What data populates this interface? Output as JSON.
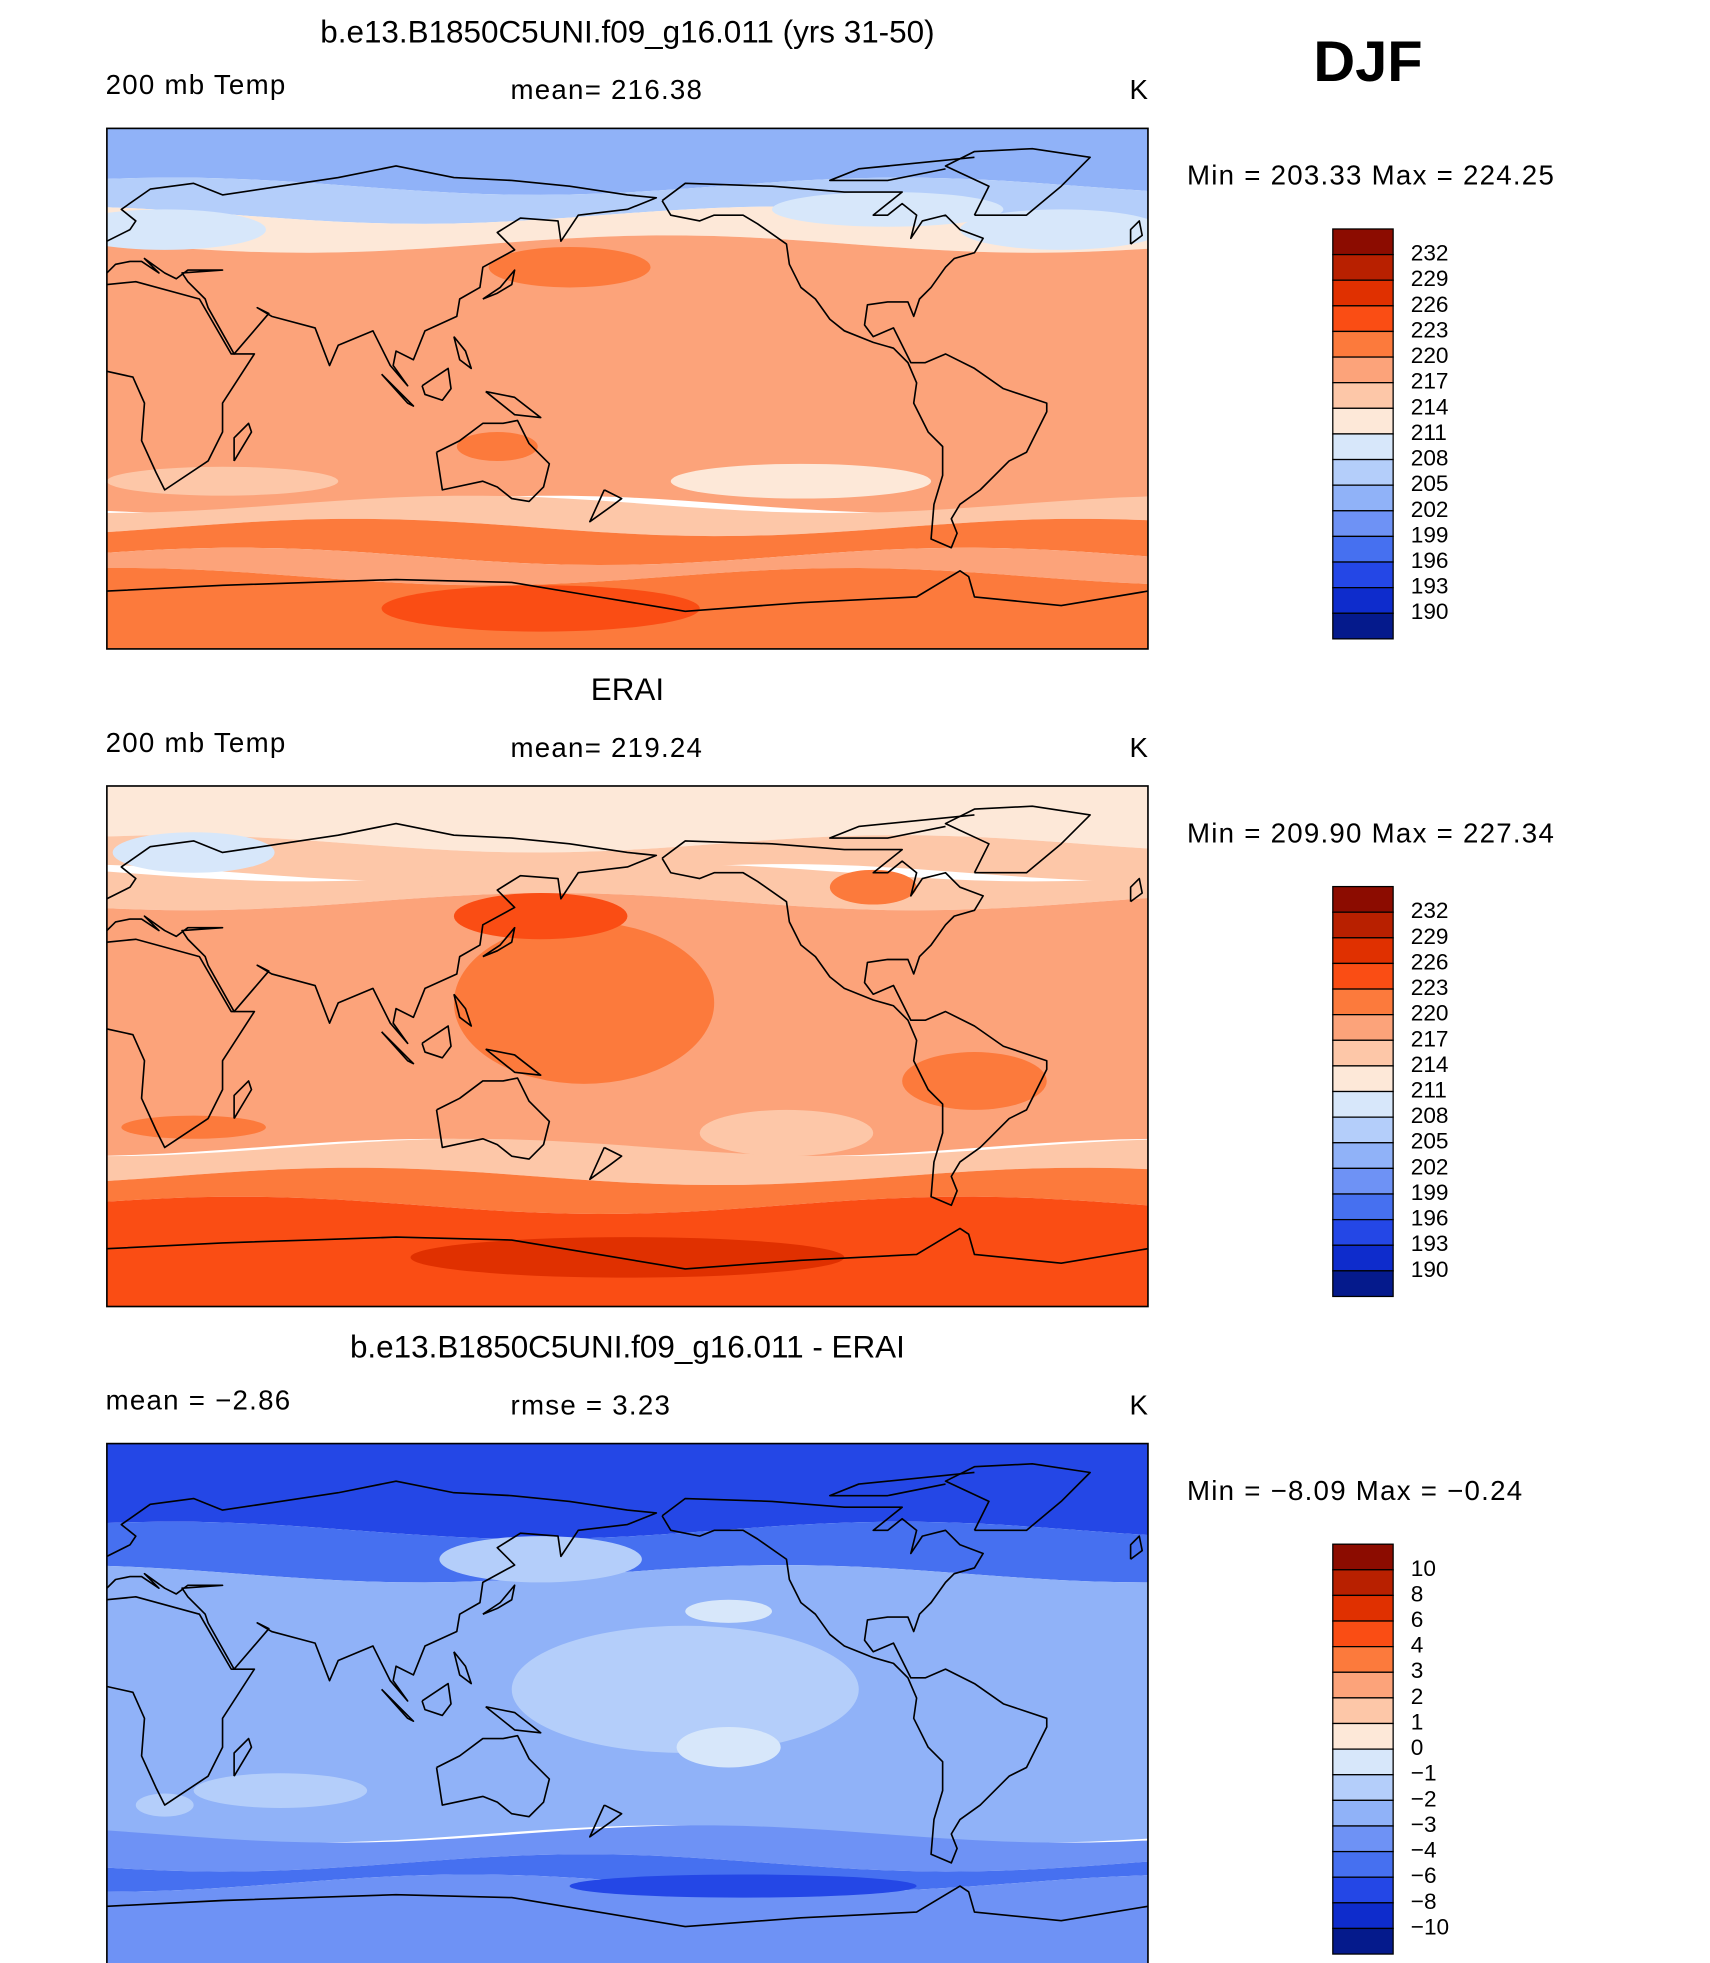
{
  "header": {
    "label": "DJF"
  },
  "panels": [
    {
      "title": "b.e13.B1850C5UNI.f09_g16.011 (yrs 31-50)",
      "left": "200 mb Temp",
      "center": "mean= 216.38",
      "units": "K",
      "minmax": "Min = 203.33 Max = 224.25",
      "colorbar": {
        "labels": [
          "232",
          "229",
          "226",
          "223",
          "220",
          "217",
          "214",
          "211",
          "208",
          "205",
          "202",
          "199",
          "196",
          "193",
          "190"
        ],
        "colors": [
          "#8c0c00",
          "#b82000",
          "#e03000",
          "#fa4d14",
          "#fc7a3c",
          "#fca37a",
          "#fdc7a8",
          "#fde8d8",
          "#d7e7fa",
          "#b4cefa",
          "#90b2f8",
          "#6e92f5",
          "#4670f0",
          "#2447e6",
          "#0e2ccc",
          "#051a8c"
        ]
      }
    },
    {
      "title": "ERAI",
      "left": "200 mb Temp",
      "center": "mean= 219.24",
      "units": "K",
      "minmax": "Min = 209.90 Max = 227.34",
      "colorbar": {
        "labels": [
          "232",
          "229",
          "226",
          "223",
          "220",
          "217",
          "214",
          "211",
          "208",
          "205",
          "202",
          "199",
          "196",
          "193",
          "190"
        ],
        "colors": [
          "#8c0c00",
          "#b82000",
          "#e03000",
          "#fa4d14",
          "#fc7a3c",
          "#fca37a",
          "#fdc7a8",
          "#fde8d8",
          "#d7e7fa",
          "#b4cefa",
          "#90b2f8",
          "#6e92f5",
          "#4670f0",
          "#2447e6",
          "#0e2ccc",
          "#051a8c"
        ]
      }
    },
    {
      "title": "b.e13.B1850C5UNI.f09_g16.011 - ERAI",
      "left": "mean =  −2.86",
      "center": "rmse =   3.23",
      "units": "K",
      "minmax": "Min =  −8.09 Max =  −0.24",
      "colorbar": {
        "labels": [
          "10",
          "8",
          "6",
          "4",
          "3",
          "2",
          "1",
          "0",
          "−1",
          "−2",
          "−3",
          "−4",
          "−6",
          "−8",
          "−10"
        ],
        "colors": [
          "#8c0c00",
          "#b82000",
          "#e03000",
          "#fa4d14",
          "#fc7a3c",
          "#fca37a",
          "#fdc7a8",
          "#fde8d8",
          "#d7e7fa",
          "#b4cefa",
          "#90b2f8",
          "#6e92f5",
          "#4670f0",
          "#2447e6",
          "#0e2ccc",
          "#051a8c"
        ]
      }
    }
  ]
}
